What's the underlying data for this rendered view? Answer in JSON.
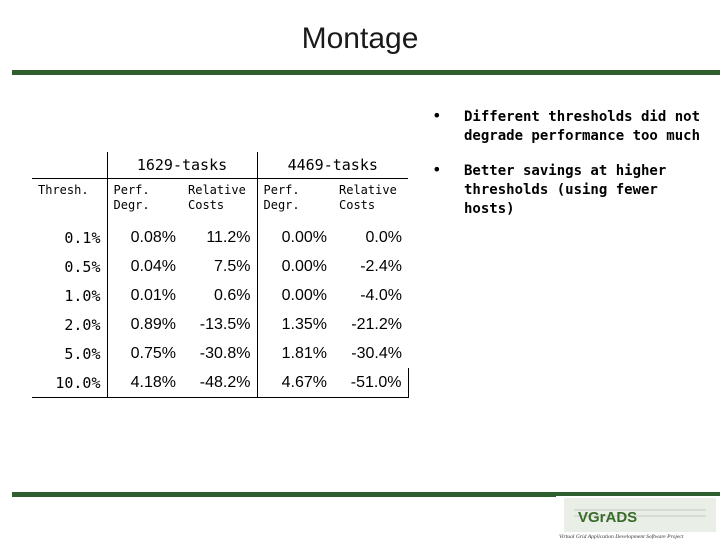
{
  "title": "Montage",
  "table": {
    "group_headers": [
      "1629-tasks",
      "4469-tasks"
    ],
    "sub_headers": {
      "thresh": "Thresh.",
      "perf": [
        "Perf.",
        "Degr."
      ],
      "relative": [
        "Relative",
        "Costs"
      ]
    },
    "rows": [
      {
        "thresh": "0.1%",
        "perf_1629": "0.08%",
        "cost_1629": "11.2%",
        "perf_4469": "0.00%",
        "cost_4469": "0.0%"
      },
      {
        "thresh": "0.5%",
        "perf_1629": "0.04%",
        "cost_1629": "7.5%",
        "perf_4469": "0.00%",
        "cost_4469": "-2.4%"
      },
      {
        "thresh": "1.0%",
        "perf_1629": "0.01%",
        "cost_1629": "0.6%",
        "perf_4469": "0.00%",
        "cost_4469": "-4.0%"
      },
      {
        "thresh": "2.0%",
        "perf_1629": "0.89%",
        "cost_1629": "-13.5%",
        "perf_4469": "1.35%",
        "cost_4469": "-21.2%"
      },
      {
        "thresh": "5.0%",
        "perf_1629": "0.75%",
        "cost_1629": "-30.8%",
        "perf_4469": "1.81%",
        "cost_4469": "-30.4%"
      },
      {
        "thresh": "10.0%",
        "perf_1629": "4.18%",
        "cost_1629": "-48.2%",
        "perf_4469": "4.67%",
        "cost_4469": "-51.0%"
      }
    ]
  },
  "bullets": [
    "Different thresholds did not degrade performance too much",
    "Better savings at higher thresholds (using fewer hosts)"
  ],
  "bullet_glyph": "•",
  "logo": {
    "name": "VGrADS",
    "tagline": "Virtual Grid Application Development Software Project"
  },
  "colors": {
    "rule": "#2f5f2f",
    "logo_green": "#3a6b2a"
  }
}
